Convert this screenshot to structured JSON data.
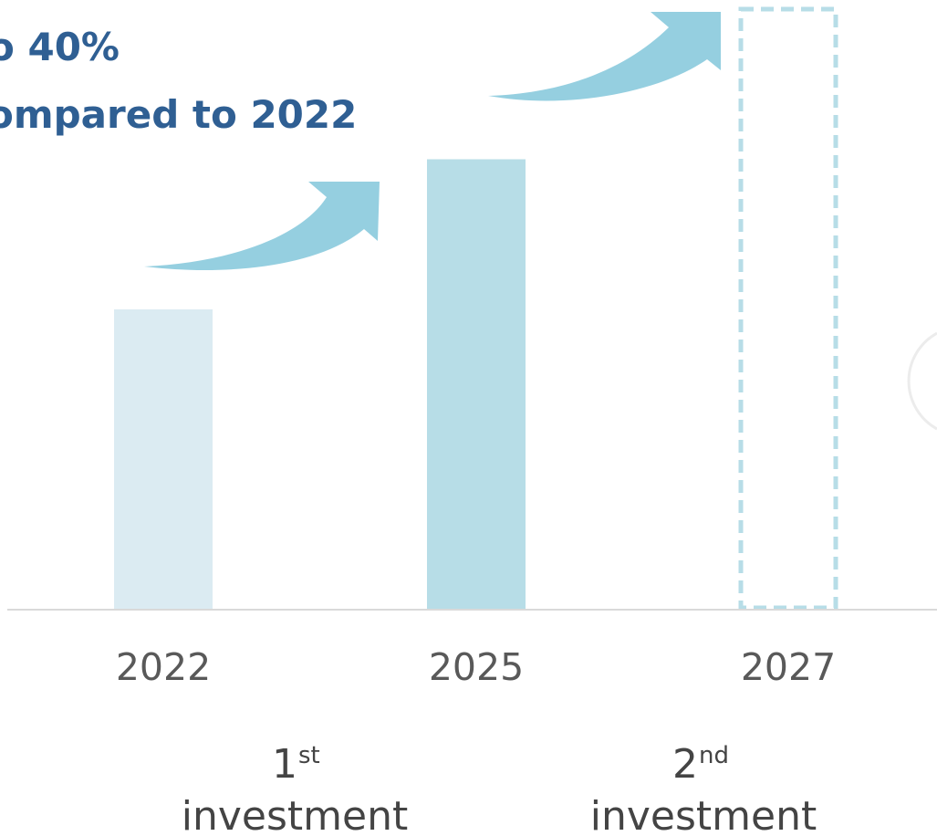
{
  "headline": {
    "line1": "o 40%",
    "line2": "ompared to 2022"
  },
  "chart_data": {
    "type": "bar",
    "categories": [
      "2022",
      "2025",
      "2027"
    ],
    "series": [
      {
        "values": [
          1.0,
          1.5,
          2.0
        ]
      }
    ],
    "ylim": [
      0,
      2.0
    ],
    "grid": false,
    "bar_colors": [
      "#dbebf2",
      "#b7dde7",
      "none"
    ],
    "target_outline_color": "#b7dde7",
    "arrow_color": "#95cfe0"
  },
  "steps": [
    {
      "number": "1",
      "suffix": "st",
      "label": "investment"
    },
    {
      "number": "2",
      "suffix": "nd",
      "label": "investment"
    }
  ],
  "colors": {
    "headline": "#2f5f93",
    "baseline": "#d9d9d9",
    "label_text": "#595959"
  }
}
